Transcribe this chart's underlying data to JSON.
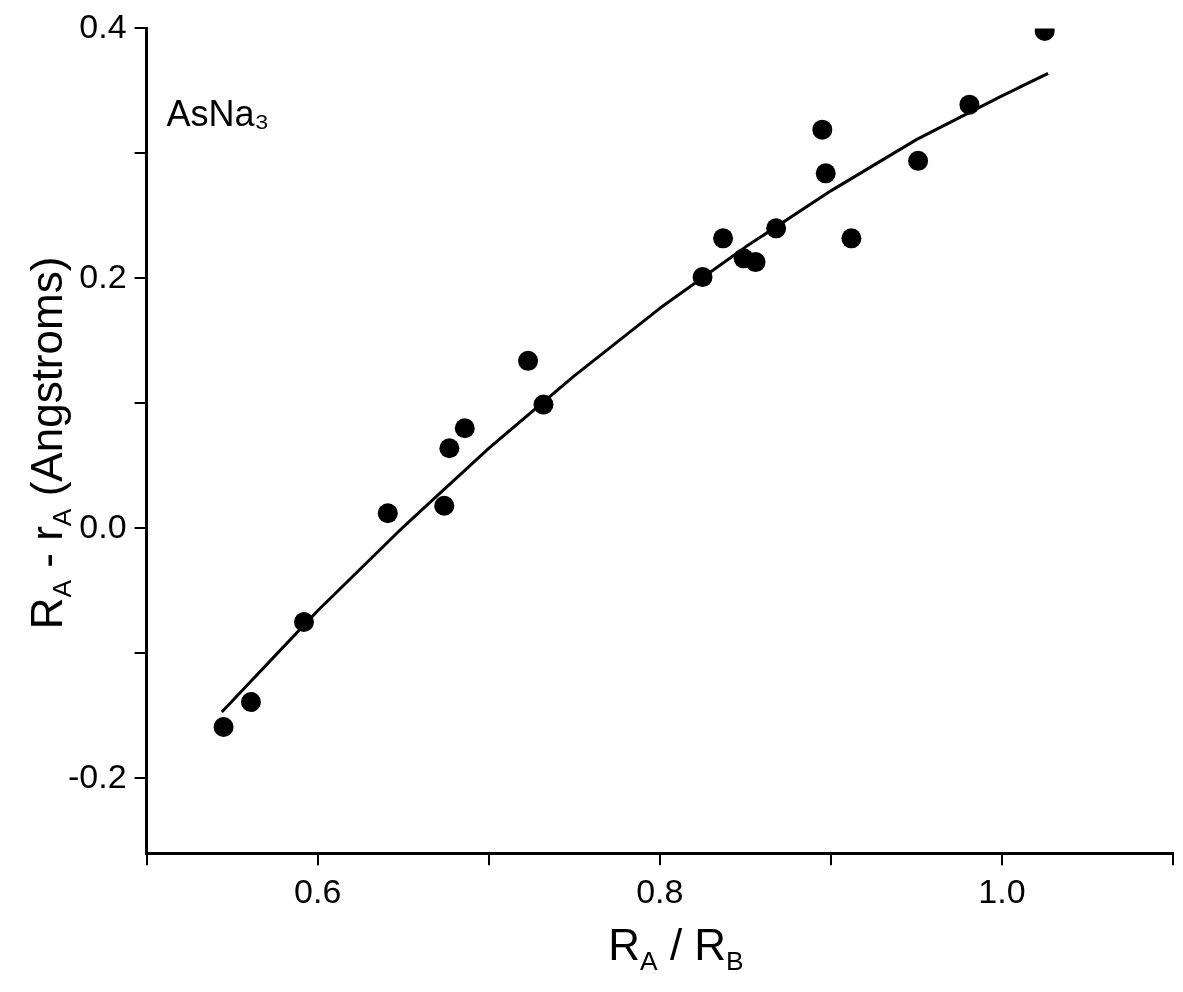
{
  "chart_data": {
    "type": "scatter",
    "xlabel": "R$_{A}$ / R$_{B}$",
    "ylabel": "R$_{A}$ - r$_{A}$ (Angstroms)",
    "annotations": [
      "AsNa₃"
    ],
    "xlim": [
      0.5,
      1.1
    ],
    "xticks": [
      {
        "value": 0.5,
        "label": null
      },
      0.6,
      {
        "value": 0.7,
        "label": null
      },
      0.8,
      {
        "value": 0.9,
        "label": null
      },
      {
        "value": 1,
        "label": "1.0"
      },
      {
        "value": 1.1,
        "label": null
      }
    ],
    "ylim": [
      -0.26,
      0.4
    ],
    "yticks": [
      -0.2,
      {
        "value": -0.1,
        "label": null
      },
      {
        "value": 0,
        "label": "0.0"
      },
      {
        "value": 0.1,
        "label": null
      },
      0.2,
      {
        "value": 0.3,
        "label": null
      },
      0.4
    ],
    "grid": false,
    "legend": false,
    "marker": "circle",
    "series": [
      {
        "type": "scatter",
        "color": "#000000",
        "x": [
          0.545,
          0.561,
          0.592,
          0.641,
          0.674,
          0.677,
          0.686,
          0.723,
          0.732,
          0.825,
          0.837,
          0.849,
          0.856,
          0.868,
          0.895,
          0.897,
          0.912,
          0.951,
          0.981,
          1.025
        ],
        "values": [
          -0.159,
          -0.139,
          -0.075,
          0.012,
          0.018,
          0.064,
          0.08,
          0.134,
          0.099,
          0.201,
          0.232,
          0.216,
          0.213,
          0.24,
          0.319,
          0.284,
          0.232,
          0.294,
          0.339,
          0.398
        ]
      },
      {
        "type": "line",
        "color": "#000000",
        "marker": "none",
        "x": [
          0.544,
          0.6,
          0.65,
          0.7,
          0.75,
          0.8,
          0.85,
          0.9,
          0.95,
          1.0,
          1.027
        ],
        "values": [
          -0.147,
          -0.066,
          0.001,
          0.064,
          0.122,
          0.176,
          0.225,
          0.27,
          0.311,
          0.346,
          0.364
        ]
      }
    ]
  }
}
